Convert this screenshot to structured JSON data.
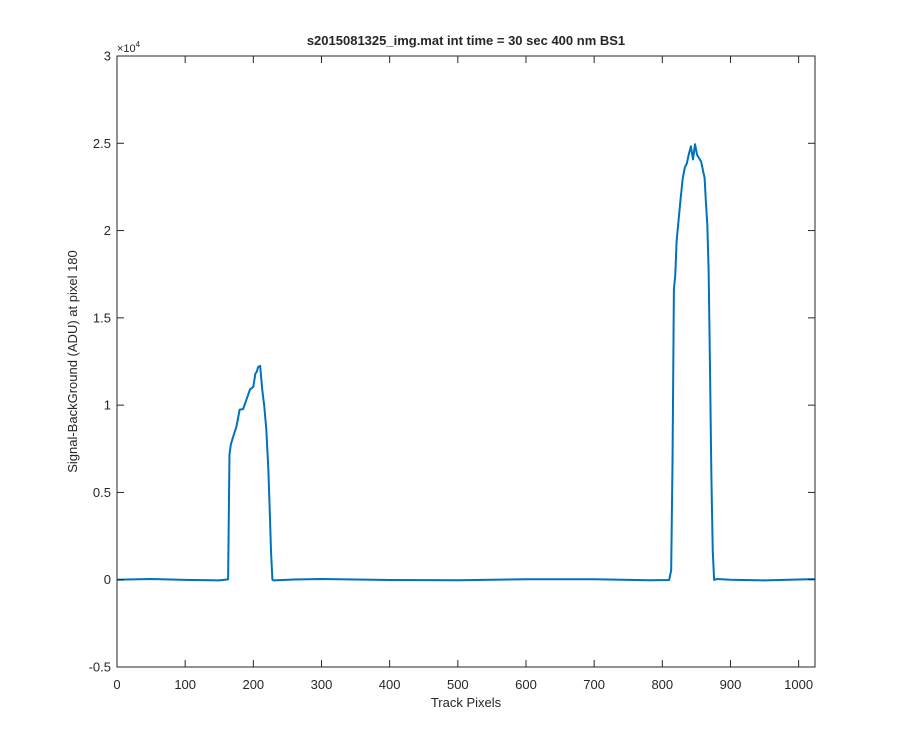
{
  "chart_data": {
    "type": "line",
    "title": "s2015081325_img.mat int time = 30 sec  400 nm BS1",
    "xlabel": "Track Pixels",
    "ylabel": "Signal-BackGround (ADU) at pixel 180",
    "xlim": [
      0,
      1024
    ],
    "ylim": [
      -5000,
      30000
    ],
    "y_exponent_label": "×10",
    "y_exponent_power": "4",
    "x_ticks": [
      0,
      100,
      200,
      300,
      400,
      500,
      600,
      700,
      800,
      900,
      1000
    ],
    "x_tick_labels": [
      "0",
      "100",
      "200",
      "300",
      "400",
      "500",
      "600",
      "700",
      "800",
      "900",
      "1000"
    ],
    "y_ticks": [
      -5000,
      0,
      5000,
      10000,
      15000,
      20000,
      25000,
      30000
    ],
    "y_tick_labels": [
      "-0.5",
      "0",
      "0.5",
      "1",
      "1.5",
      "2",
      "2.5",
      "3"
    ],
    "grid": false,
    "line_color": "#0072bd",
    "series": [
      {
        "name": "",
        "x": [
          0,
          50,
          100,
          150,
          163,
          165,
          167,
          170,
          175,
          180,
          185,
          190,
          195,
          200,
          203,
          205,
          207,
          210,
          213,
          216,
          219,
          222,
          224,
          226,
          228,
          230,
          260,
          300,
          400,
          500,
          600,
          700,
          780,
          810,
          813,
          815,
          817,
          819,
          821,
          824,
          827,
          830,
          833,
          836,
          839,
          842,
          845,
          848,
          851,
          854,
          857,
          860,
          862,
          864,
          866,
          868,
          870,
          872,
          874,
          876,
          880,
          900,
          950,
          1000,
          1023
        ],
        "y": [
          0,
          0,
          0,
          0,
          0,
          7300,
          7600,
          8200,
          8800,
          9600,
          9900,
          10300,
          10800,
          11200,
          11700,
          11900,
          12300,
          12100,
          11000,
          10000,
          8500,
          6500,
          4000,
          1500,
          0,
          0,
          0,
          0,
          0,
          0,
          0,
          0,
          0,
          0,
          500,
          7000,
          16500,
          17500,
          19500,
          20500,
          22000,
          23000,
          23500,
          24000,
          24300,
          24800,
          24200,
          24800,
          24400,
          24200,
          23800,
          23500,
          23000,
          21500,
          20500,
          17500,
          12000,
          6000,
          1500,
          0,
          0,
          0,
          0,
          0,
          0
        ]
      }
    ]
  }
}
